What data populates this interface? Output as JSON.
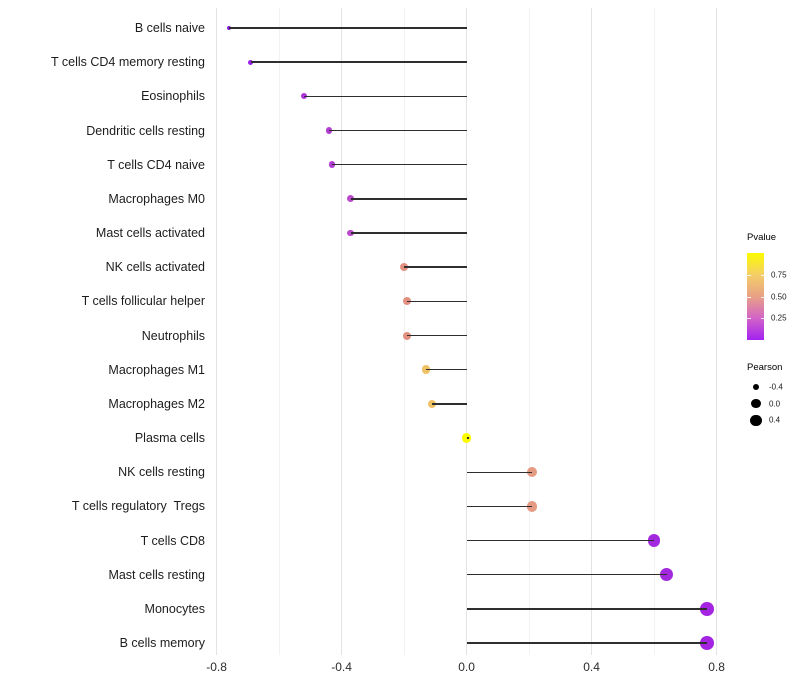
{
  "chart_data": {
    "type": "lollipop",
    "title": "",
    "xlabel": "",
    "ylabel": "",
    "xlim": [
      -0.885,
      0.875
    ],
    "x_ticks": [
      "-0.8",
      "-0.4",
      "0.0",
      "0.4",
      "0.8"
    ],
    "x_tick_values": [
      -0.8,
      -0.4,
      0.0,
      0.4,
      0.8
    ],
    "x_minor_values": [
      -0.6,
      -0.2,
      0.2,
      0.6
    ],
    "grid": "on",
    "size_encoding": "Pearson",
    "color_encoding": "Pvalue",
    "points": [
      {
        "label": "B cells naive",
        "pearson": -0.76,
        "pvalue": 0.001,
        "color": "#8618DE"
      },
      {
        "label": "T cells CD4 memory resting",
        "pearson": -0.69,
        "pvalue": 0.01,
        "color": "#9920E6"
      },
      {
        "label": "Eosinophils",
        "pearson": -0.52,
        "pvalue": 0.05,
        "color": "#A935DB"
      },
      {
        "label": "Dendritic cells resting",
        "pearson": -0.44,
        "pvalue": 0.08,
        "color": "#B13ED3"
      },
      {
        "label": "T cells CD4 naive",
        "pearson": -0.43,
        "pvalue": 0.08,
        "color": "#B13ED3"
      },
      {
        "label": "Macrophages M0",
        "pearson": -0.37,
        "pvalue": 0.12,
        "color": "#BB4BCC"
      },
      {
        "label": "Mast cells activated",
        "pearson": -0.37,
        "pvalue": 0.12,
        "color": "#BB4BCC"
      },
      {
        "label": "NK cells activated",
        "pearson": -0.2,
        "pvalue": 0.45,
        "color": "#E29180"
      },
      {
        "label": "T cells follicular helper",
        "pearson": -0.19,
        "pvalue": 0.45,
        "color": "#E29180"
      },
      {
        "label": "Neutrophils",
        "pearson": -0.19,
        "pvalue": 0.45,
        "color": "#E29180"
      },
      {
        "label": "Macrophages M1",
        "pearson": -0.13,
        "pvalue": 0.65,
        "color": "#EFC266"
      },
      {
        "label": "Macrophages M2",
        "pearson": -0.11,
        "pvalue": 0.65,
        "color": "#EFC266"
      },
      {
        "label": "Plasma cells",
        "pearson": 0.0,
        "pvalue": 0.98,
        "color": "#FBFB00"
      },
      {
        "label": "NK cells resting",
        "pearson": 0.21,
        "pvalue": 0.42,
        "color": "#E59A84"
      },
      {
        "label": "T cells regulatory  Tregs",
        "pearson": 0.21,
        "pvalue": 0.42,
        "color": "#E59A84"
      },
      {
        "label": "T cells CD8",
        "pearson": 0.6,
        "pvalue": 0.01,
        "color": "#A229DD"
      },
      {
        "label": "Mast cells resting",
        "pearson": 0.64,
        "pvalue": 0.01,
        "color": "#A229DD"
      },
      {
        "label": "Monocytes",
        "pearson": 0.77,
        "pvalue": 0.005,
        "color": "#A424E2"
      },
      {
        "label": "B cells memory",
        "pearson": 0.77,
        "pvalue": 0.005,
        "color": "#A424E2"
      }
    ],
    "stem_color": "#2e2e2e",
    "grid_major_color": "#e3e3e3",
    "grid_minor_color": "#f2f2f2"
  },
  "legend": {
    "pvalue": {
      "title": "Pvalue",
      "ticks": [
        "0.75",
        "0.50",
        "0.25"
      ],
      "gradient": [
        "#FBFB00",
        "#F4CE67",
        "#E8A186",
        "#D263C8",
        "#A322F0"
      ]
    },
    "pearson": {
      "title": "Pearson",
      "items": [
        {
          "label": "-0.4",
          "value": -0.4
        },
        {
          "label": "0.0",
          "value": 0.0
        },
        {
          "label": "0.4",
          "value": 0.4
        }
      ],
      "dot_color": "#000000"
    }
  }
}
